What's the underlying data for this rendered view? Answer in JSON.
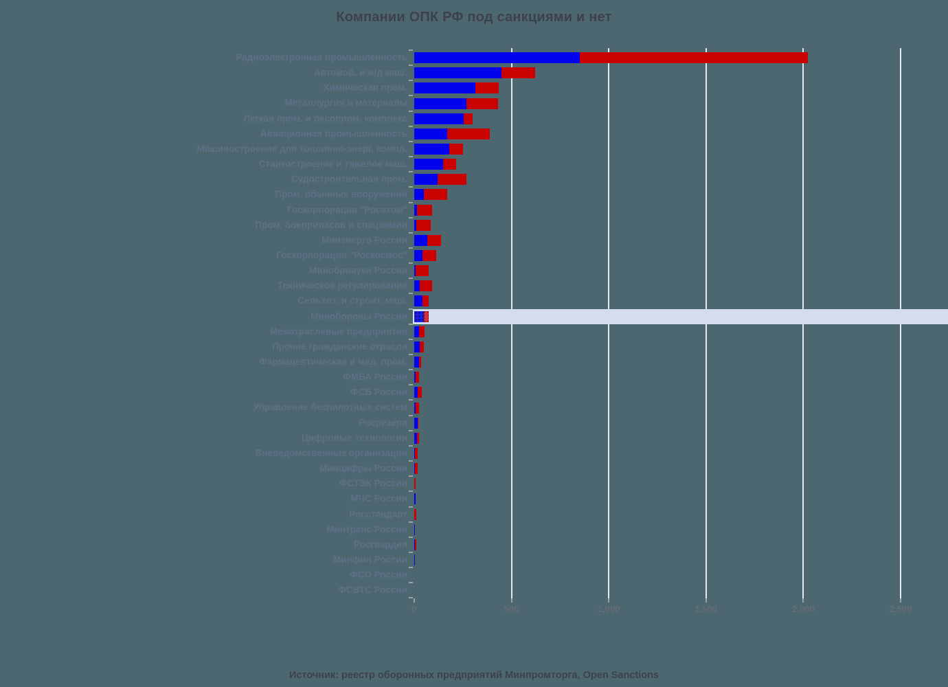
{
  "title": "Компании ОПК РФ под санкциями и нет",
  "source": "Источник: реестр оборонных предприятий Минпромторга, Open Sanctions",
  "colors": {
    "background": "#4d6770",
    "bar_blue": "#0202ee",
    "bar_red": "#c90201",
    "highlight_band": "#d4dcf0",
    "gridline": "#e4e8ef",
    "title_text": "#3d424a",
    "category_label_text": "#5e7086",
    "axis_label_text": "#646d78"
  },
  "chart_data": {
    "type": "bar",
    "orientation": "horizontal",
    "stacked": true,
    "title": "Компании ОПК РФ под санкциями и нет",
    "xlabel": "",
    "ylabel": "",
    "xlim": [
      0,
      2500
    ],
    "x_tick_labels": [
      "0",
      "500",
      "1,000",
      "1,500",
      "2,000",
      "2,500"
    ],
    "x_tick_values": [
      0,
      500,
      1000,
      1500,
      2000,
      2500
    ],
    "grid": true,
    "legend": "none",
    "highlighted_category": "Минобороны России",
    "categories": [
      "Радиоэлектронная промышленность",
      "Автомоб. и ж/д маш.",
      "Химическая пром.",
      "Металлургия и материалы",
      "Легкая пром. и лесопром. комплекс",
      "Авиационная промышленность",
      "Машиностроение для топливно-энерг. компл.",
      "Станкостроение и тяжелое маш.",
      "Судостроительная пром.",
      "Пром. обычных вооружений",
      "Госкорпорация \"Росатом\"",
      "Пром. боеприпасов и спецхимии",
      "Минэнерго России",
      "Госкорпорация \"Роскосмос\"",
      "Минобрнауки России",
      "Техническое регулирование",
      "Сельхоз. и строит. маш.",
      "Минобороны России",
      "Межотраслевые предприятия",
      "Прочие гражданские отрасли",
      "Фармацевтическая и мед. пром.",
      "ФМБА России",
      "ФСБ России",
      "Управление беспилотных систем",
      "Росрезерв",
      "Цифровые технологии",
      "Вневедомственные организации",
      "Минцифры России",
      "ФСТЭК России",
      "МЧС России",
      "Росстандарт",
      "Минтранс России",
      "Росгвардия",
      "Минфин России",
      "ФСО России",
      "ФСВТС России"
    ],
    "series": [
      {
        "name": "blue",
        "color": "#0202ee",
        "values": [
          850,
          450,
          315,
          270,
          255,
          170,
          180,
          150,
          120,
          50,
          15,
          11,
          66,
          41,
          6,
          27,
          41,
          49,
          24,
          27,
          24,
          7,
          18,
          6,
          18,
          14,
          2,
          4,
          1,
          8,
          0,
          5,
          3,
          2,
          1,
          1
        ]
      },
      {
        "name": "red",
        "color": "#c90201",
        "values": [
          1175,
          170,
          120,
          160,
          45,
          220,
          70,
          65,
          150,
          118,
          76,
          75,
          72,
          71,
          67,
          65,
          32,
          25,
          28,
          21,
          10,
          18,
          20,
          19,
          2,
          9,
          17,
          13,
          7,
          1,
          9,
          1,
          7,
          1,
          1,
          1
        ]
      }
    ]
  }
}
